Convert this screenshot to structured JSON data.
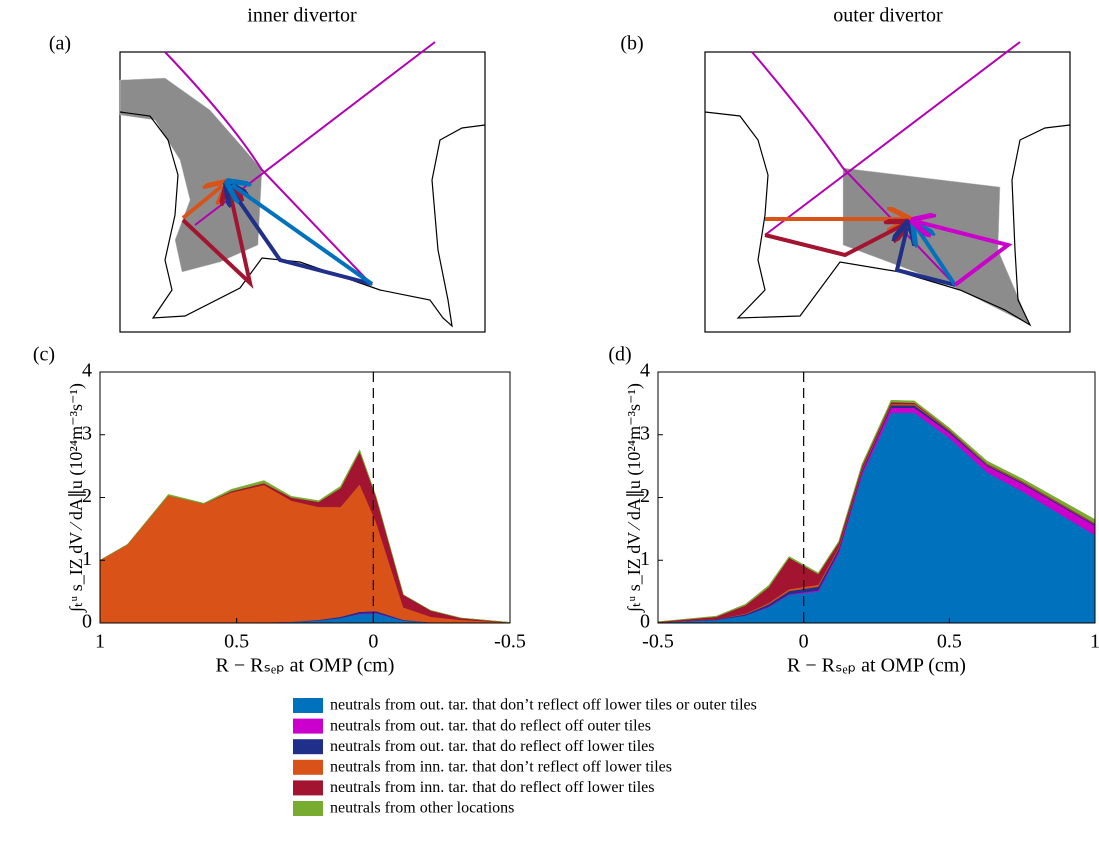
{
  "diagrams": [
    {
      "label": "(a)",
      "title": "inner divertor"
    },
    {
      "label": "(b)",
      "title": "outer divertor"
    }
  ],
  "chart_data": [
    {
      "type": "area",
      "label": "(c)",
      "ylabel": "∫ₜᵘ s_IZ dV ⁄ dA∥u  (10²⁴m⁻³s⁻¹)",
      "xlabel": "R − Rₛₑₚ at OMP (cm)",
      "x": [
        1,
        0.9,
        0.75,
        0.62,
        0.52,
        0.4,
        0.3,
        0.2,
        0.12,
        0.05,
        -0.01,
        -0.11,
        -0.21,
        -0.32,
        -0.5
      ],
      "xlim": [
        1,
        -0.5
      ],
      "xticks": [
        1,
        0.5,
        0,
        -0.5
      ],
      "ylim": [
        0,
        4
      ],
      "yticks": [
        0,
        1,
        2,
        3,
        4
      ],
      "vline": 0,
      "series": [
        {
          "name": "neutrals from out. tar. that don’t reflect off lower tiles or outer tiles",
          "color": "#0072bd",
          "values": [
            0,
            0,
            0,
            0,
            0,
            0.01,
            0.02,
            0.04,
            0.08,
            0.14,
            0.15,
            0.04,
            0.01,
            0,
            0
          ]
        },
        {
          "name": "neutrals from out. tar. that do reflect off outer tiles",
          "color": "#cc00cc",
          "values": [
            0,
            0,
            0,
            0,
            0,
            0,
            0,
            0,
            0,
            0.01,
            0.01,
            0,
            0,
            0,
            0
          ]
        },
        {
          "name": "neutrals from out. tar. that do reflect off lower tiles",
          "color": "#1f2f8a",
          "values": [
            0,
            0,
            0,
            0,
            0,
            0,
            0,
            0.01,
            0.02,
            0.03,
            0.03,
            0.01,
            0,
            0,
            0
          ]
        },
        {
          "name": "neutrals from inn. tar. that don’t reflect off lower tiles",
          "color": "#d95319",
          "values": [
            1.0,
            1.25,
            2.03,
            1.9,
            2.08,
            2.19,
            1.93,
            1.8,
            1.75,
            2.03,
            1.42,
            0.2,
            0.09,
            0.05,
            0.01
          ]
        },
        {
          "name": "neutrals from inn. tar. that do reflect off lower tiles",
          "color": "#a2142f",
          "values": [
            0,
            0,
            0,
            0,
            0.02,
            0.03,
            0.05,
            0.08,
            0.3,
            0.52,
            0.4,
            0.2,
            0.1,
            0.03,
            0
          ]
        },
        {
          "name": "neutrals from other locations",
          "color": "#77ac30",
          "values": [
            0,
            0,
            0.02,
            0.01,
            0.03,
            0.04,
            0.02,
            0.02,
            0.03,
            0.03,
            0.01,
            0,
            0,
            0,
            0
          ]
        }
      ]
    },
    {
      "type": "area",
      "label": "(d)",
      "ylabel": "∫ₜᵘ s_IZ dV ⁄ dA∥u  (10²⁴m⁻³s⁻¹)",
      "xlabel": "R − Rₛₑₚ at OMP (cm)",
      "x": [
        -0.5,
        -0.3,
        -0.2,
        -0.12,
        -0.05,
        0.05,
        0.12,
        0.2,
        0.3,
        0.38,
        0.5,
        0.63,
        0.75,
        1
      ],
      "xlim": [
        -0.5,
        1
      ],
      "xticks": [
        -0.5,
        0,
        0.5,
        1
      ],
      "ylim": [
        0,
        4
      ],
      "yticks": [
        0,
        1,
        2,
        3,
        4
      ],
      "vline": 0,
      "series": [
        {
          "color": "#0072bd",
          "values": [
            0.01,
            0.05,
            0.12,
            0.25,
            0.45,
            0.5,
            1.1,
            2.35,
            3.35,
            3.35,
            2.95,
            2.4,
            2.1,
            1.4
          ]
        },
        {
          "color": "#cc00cc",
          "values": [
            0,
            0,
            0,
            0.01,
            0.01,
            0.02,
            0.03,
            0.04,
            0.08,
            0.08,
            0.08,
            0.1,
            0.12,
            0.15
          ]
        },
        {
          "color": "#1f2f8a",
          "values": [
            0,
            0.01,
            0.02,
            0.04,
            0.05,
            0.06,
            0.05,
            0.04,
            0.04,
            0.04,
            0.03,
            0.02,
            0.02,
            0.02
          ]
        },
        {
          "color": "#d95319",
          "values": [
            0,
            0,
            0.01,
            0.02,
            0.03,
            0.03,
            0.02,
            0.02,
            0.02,
            0.02,
            0.01,
            0.01,
            0.01,
            0.01
          ]
        },
        {
          "color": "#a2142f",
          "values": [
            0.01,
            0.04,
            0.13,
            0.25,
            0.5,
            0.17,
            0.08,
            0.05,
            0.03,
            0.02,
            0.01,
            0.01,
            0.01,
            0.01
          ]
        },
        {
          "color": "#77ac30",
          "values": [
            0,
            0.01,
            0.02,
            0.03,
            0.02,
            0.02,
            0.02,
            0.03,
            0.03,
            0.03,
            0.03,
            0.04,
            0.04,
            0.06
          ]
        }
      ]
    }
  ]
}
